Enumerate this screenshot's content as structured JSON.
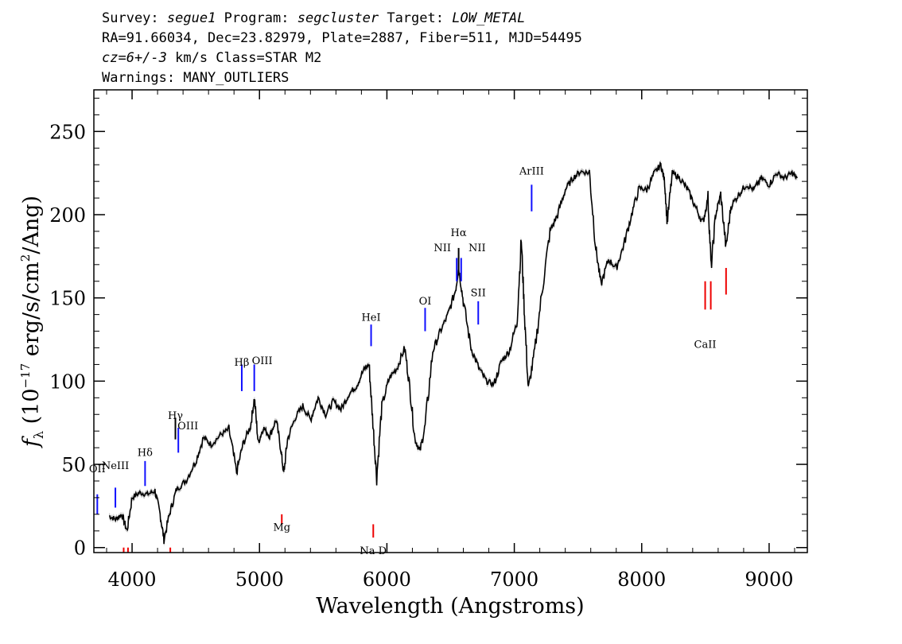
{
  "header": {
    "survey_label": "Survey:",
    "survey": "segue1",
    "program_label": "Program:",
    "program": "segcluster",
    "target_label": "Target:",
    "target": "LOW_METAL",
    "line2": "RA=91.66034, Dec=23.82979, Plate=2887, Fiber=511, MJD=54495",
    "cz_label": "cz=6+/-3",
    "line3_rest": " km/s Class=STAR M2",
    "line4": "Warnings: MANY_OUTLIERS"
  },
  "chart_data": {
    "type": "line",
    "title": "",
    "xlabel": "Wavelength (Angstroms)",
    "ylabel": "f_λ (10^-17 erg/s/cm^2/Ang)",
    "xlim": [
      3700,
      9300
    ],
    "ylim": [
      -3,
      275
    ],
    "x_ticks": [
      4000,
      5000,
      6000,
      7000,
      8000,
      9000
    ],
    "x_tick_labels": [
      "4000",
      "5000",
      "6000",
      "7000",
      "8000",
      "9000"
    ],
    "y_ticks": [
      0,
      50,
      100,
      150,
      200,
      250
    ],
    "y_tick_labels": [
      "0",
      "50",
      "100",
      "150",
      "200",
      "250"
    ],
    "grid": false,
    "series": [
      {
        "color": "#000000",
        "error_band_color": "#c0c0c0",
        "x": [
          3820,
          3870,
          3920,
          3960,
          4000,
          4060,
          4120,
          4180,
          4220,
          4250,
          4300,
          4350,
          4420,
          4500,
          4560,
          4620,
          4700,
          4760,
          4820,
          4870,
          4930,
          4960,
          4990,
          5030,
          5080,
          5130,
          5170,
          5190,
          5220,
          5280,
          5340,
          5400,
          5460,
          5520,
          5580,
          5640,
          5700,
          5760,
          5820,
          5860,
          5890,
          5920,
          5960,
          6020,
          6080,
          6140,
          6180,
          6220,
          6260,
          6300,
          6360,
          6420,
          6480,
          6540,
          6563,
          6600,
          6660,
          6720,
          6780,
          6840,
          6900,
          6960,
          7020,
          7055,
          7080,
          7110,
          7160,
          7220,
          7280,
          7340,
          7400,
          7460,
          7520,
          7590,
          7640,
          7680,
          7740,
          7800,
          7860,
          7920,
          7980,
          8040,
          8100,
          8150,
          8180,
          8200,
          8240,
          8300,
          8360,
          8420,
          8480,
          8520,
          8545,
          8580,
          8620,
          8662,
          8700,
          8760,
          8820,
          8880,
          8940,
          9000,
          9060,
          9120,
          9180,
          9220
        ],
        "y": [
          19,
          17,
          20,
          10,
          30,
          33,
          32,
          34,
          20,
          5,
          22,
          35,
          40,
          52,
          66,
          62,
          68,
          71,
          45,
          62,
          73,
          90,
          63,
          72,
          67,
          77,
          58,
          44,
          65,
          78,
          85,
          77,
          90,
          80,
          88,
          83,
          92,
          97,
          107,
          110,
          75,
          42,
          85,
          102,
          108,
          120,
          96,
          65,
          58,
          73,
          118,
          130,
          140,
          155,
          168,
          148,
          120,
          108,
          100,
          98,
          112,
          118,
          135,
          185,
          140,
          95,
          118,
          155,
          190,
          200,
          215,
          222,
          226,
          225,
          180,
          158,
          173,
          168,
          182,
          200,
          216,
          215,
          225,
          230,
          220,
          195,
          225,
          222,
          215,
          205,
          195,
          210,
          168,
          200,
          212,
          180,
          205,
          212,
          218,
          215,
          222,
          218,
          225,
          222,
          225,
          222
        ]
      }
    ],
    "annotations": [
      {
        "label": "OII",
        "x": 3727,
        "color": "blue"
      },
      {
        "label": "NeIII",
        "x": 3869,
        "color": "blue"
      },
      {
        "label": "Hδ",
        "x": 4102,
        "color": "blue"
      },
      {
        "label": "Hγ",
        "x": 4340,
        "color": "black"
      },
      {
        "label": "OIII",
        "x": 4363,
        "color": "blue"
      },
      {
        "label": "Hβ",
        "x": 4861,
        "color": "blue"
      },
      {
        "label": "OIII",
        "x": 4959,
        "color": "blue"
      },
      {
        "label": "Mg",
        "x": 5175,
        "color": "red"
      },
      {
        "label": "HeI",
        "x": 5876,
        "color": "blue"
      },
      {
        "label": "Na D",
        "x": 5893,
        "color": "red"
      },
      {
        "label": "OI",
        "x": 6300,
        "color": "blue"
      },
      {
        "label": "NII",
        "x": 6548,
        "color": "blue"
      },
      {
        "label": "Hα",
        "x": 6563,
        "color": "black"
      },
      {
        "label": "NII",
        "x": 6583,
        "color": "blue"
      },
      {
        "label": "SII",
        "x": 6717,
        "color": "blue"
      },
      {
        "label": "ArIII",
        "x": 7136,
        "color": "blue"
      },
      {
        "label": "CaII",
        "x": 8498,
        "color": "red"
      }
    ]
  }
}
